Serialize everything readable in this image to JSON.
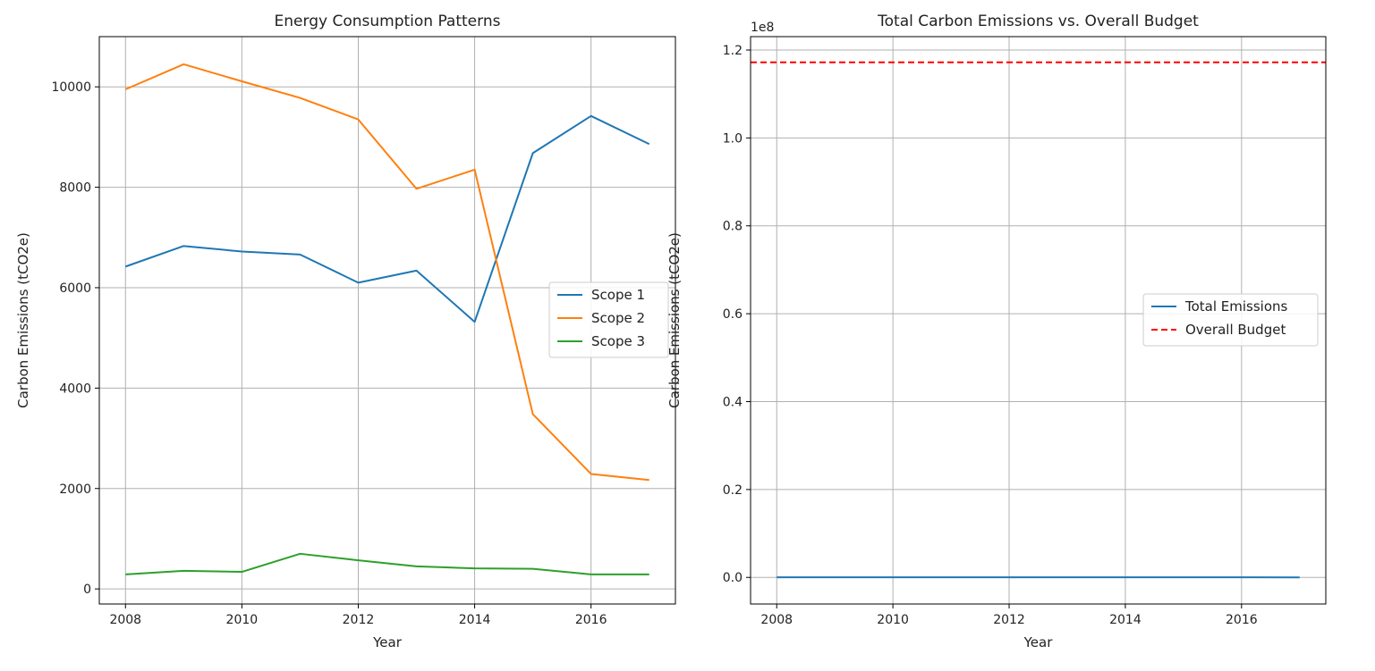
{
  "chart_data": [
    {
      "type": "line",
      "title": "Energy Consumption Patterns",
      "xlabel": "Year",
      "ylabel": "Carbon Emissions (tCO2e)",
      "x": [
        2008,
        2009,
        2010,
        2011,
        2012,
        2013,
        2014,
        2015,
        2016,
        2017
      ],
      "xticks": [
        2008,
        2010,
        2012,
        2014,
        2016
      ],
      "xtick_labels": [
        "2008",
        "2010",
        "2012",
        "2014",
        "2016"
      ],
      "yticks": [
        0,
        2000,
        4000,
        6000,
        8000,
        10000
      ],
      "ytick_labels": [
        "0",
        "2000",
        "4000",
        "6000",
        "8000",
        "10000"
      ],
      "xlim": [
        2007.55,
        2017.45
      ],
      "ylim": [
        -300,
        11000
      ],
      "grid": true,
      "legend_position": "center-right",
      "series": [
        {
          "name": "Scope 1",
          "color": "#1f77b4",
          "style": "solid",
          "values": [
            6420,
            6830,
            6720,
            6660,
            6100,
            6340,
            5320,
            8680,
            9420,
            8860
          ]
        },
        {
          "name": "Scope 2",
          "color": "#ff7f0e",
          "style": "solid",
          "values": [
            9950,
            10450,
            10110,
            9780,
            9350,
            7970,
            8350,
            3480,
            2290,
            2170
          ]
        },
        {
          "name": "Scope 3",
          "color": "#2ca02c",
          "style": "solid",
          "values": [
            290,
            360,
            340,
            700,
            570,
            450,
            410,
            400,
            290,
            290
          ]
        }
      ]
    },
    {
      "type": "line",
      "title": "Total Carbon Emissions vs. Overall Budget",
      "xlabel": "Year",
      "ylabel": "Carbon Emissions (tCO2e)",
      "offset_label": "1e8",
      "x": [
        2008,
        2009,
        2010,
        2011,
        2012,
        2013,
        2014,
        2015,
        2016,
        2017
      ],
      "xticks": [
        2008,
        2010,
        2012,
        2014,
        2016
      ],
      "xtick_labels": [
        "2008",
        "2010",
        "2012",
        "2014",
        "2016"
      ],
      "yticks": [
        0,
        0.2,
        0.4,
        0.6,
        0.8,
        1.0,
        1.2
      ],
      "ytick_labels": [
        "0.0",
        "0.2",
        "0.4",
        "0.6",
        "0.8",
        "1.0",
        "1.2"
      ],
      "xlim": [
        2007.55,
        2017.45
      ],
      "ylim": [
        -0.0605,
        1.2305
      ],
      "grid": true,
      "legend_position": "center-right",
      "series": [
        {
          "name": "Total Emissions",
          "color": "#1f77b4",
          "style": "solid",
          "values": [
            0.00017,
            0.00018,
            0.00017,
            0.00017,
            0.00016,
            0.00015,
            0.00014,
            0.00013,
            0.00012,
            0.00011
          ]
        },
        {
          "name": "Overall Budget",
          "color": "#ff0000",
          "style": "dashed",
          "hline": 1.172
        }
      ]
    }
  ]
}
